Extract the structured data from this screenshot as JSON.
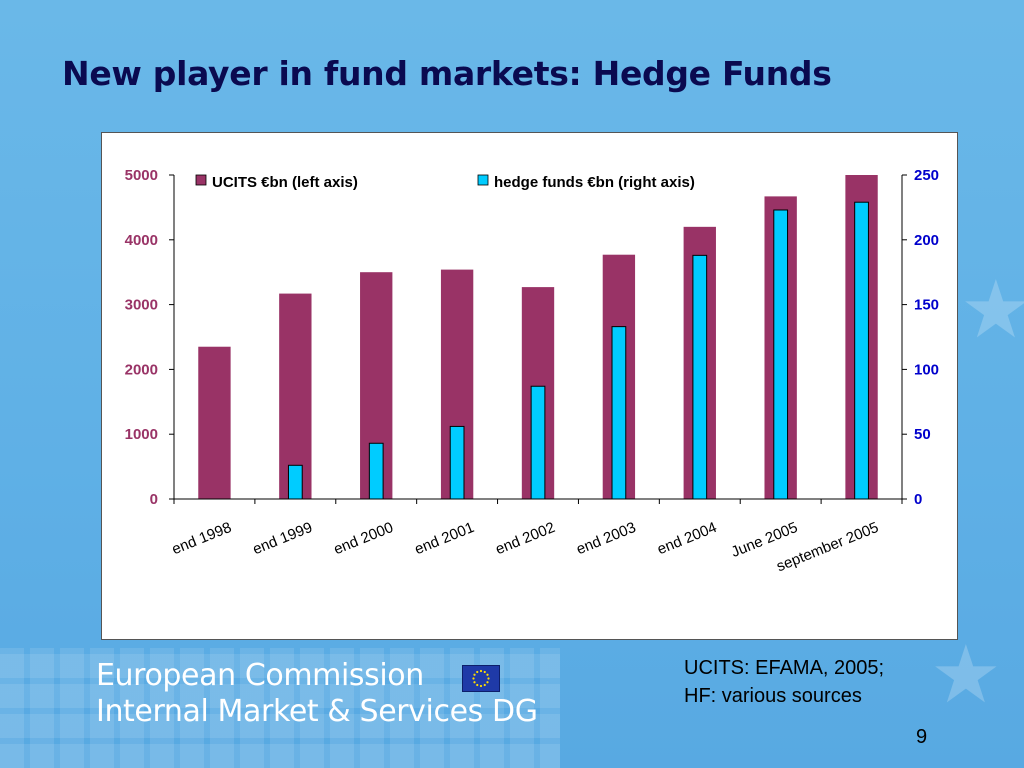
{
  "slide": {
    "title": "New player in fund markets: Hedge Funds",
    "source_line1": "UCITS: EFAMA, 2005;",
    "source_line2": "HF: various sources",
    "page_number": "9"
  },
  "footer": {
    "org_line1": "European Commission",
    "org_line2": "Internal Market & Services DG",
    "flag_icon": "eu-flag-icon"
  },
  "colors": {
    "ucits": "#993366",
    "hedge": "#00ccff",
    "left_axis_text": "#993366",
    "right_axis_text": "#0000cc",
    "title": "#0a0a50"
  },
  "chart_data": {
    "type": "bar",
    "title": "",
    "xlabel": "",
    "categories": [
      "end 1998",
      "end 1999",
      "end 2000",
      "end 2001",
      "end 2002",
      "end 2003",
      "end 2004",
      "June 2005",
      "september 2005"
    ],
    "series": [
      {
        "name": "UCITS €bn (left axis)",
        "axis": "left",
        "values": [
          2350,
          3170,
          3500,
          3540,
          3270,
          3770,
          4200,
          4670,
          5000
        ]
      },
      {
        "name": "hedge funds €bn (right axis)",
        "axis": "right",
        "values": [
          null,
          26,
          43,
          56,
          87,
          133,
          188,
          223,
          229
        ]
      }
    ],
    "left_axis": {
      "ylim": [
        0,
        5000
      ],
      "ticks": [
        "0",
        "1000",
        "2000",
        "3000",
        "4000",
        "5000"
      ]
    },
    "right_axis": {
      "ylim": [
        0,
        250
      ],
      "ticks": [
        "0",
        "50",
        "100",
        "150",
        "200",
        "250"
      ]
    },
    "legend": "top",
    "grid": false
  }
}
